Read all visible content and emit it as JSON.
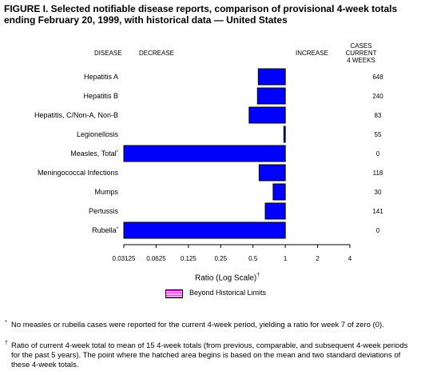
{
  "title": "FIGURE I. Selected notifiable disease reports, comparison of provisional 4-week totals ending February 20, 1999, with historical data — United States",
  "headers": {
    "disease": "DISEASE",
    "decrease": "DECREASE",
    "increase": "INCREASE",
    "cases_line1": "CASES CURRENT",
    "cases_line2": "4 WEEKS"
  },
  "legend": {
    "label": "Beyond Historical Limits",
    "hatch_color": "#ff00ff"
  },
  "footnotes": [
    {
      "mark": "*",
      "text": "No measles or rubella cases were reported for the current 4-week period, yielding a ratio for week 7 of zero (0)."
    },
    {
      "mark": "†",
      "text": "Ratio of current 4-week total to mean of 15 4-week totals (from previous, comparable, and subsequent 4-week periods for the past 5 years). The point where the hatched area begins is based on the mean and two standard deviations of these 4-week totals."
    }
  ],
  "chart_data": {
    "type": "bar",
    "orientation": "horizontal",
    "xlabel": "Ratio (Log Scale)",
    "xlabel_mark": "†",
    "x_scale": "log2",
    "xlim": [
      0.03125,
      4
    ],
    "xticks": [
      0.03125,
      0.0625,
      0.125,
      0.25,
      0.5,
      1,
      2,
      4
    ],
    "xtick_labels": [
      "0.03125",
      "0.0625",
      "0.125",
      "0.25",
      "0.5",
      "1",
      "2",
      "4"
    ],
    "baseline": 1,
    "bar_color": "#0000ff",
    "categories": [
      "Hepatitis A",
      "Hepatitis B",
      "Hepatitis, C/Non-A, Non-B",
      "Legionellosis",
      "Measles, Total",
      "Meningococcal Infections",
      "Mumps",
      "Pertussis",
      "Rubella"
    ],
    "category_marks": [
      "",
      "",
      "",
      "",
      "*",
      "",
      "",
      "",
      "*"
    ],
    "values": [
      0.56,
      0.55,
      0.46,
      0.97,
      0.03125,
      0.57,
      0.77,
      0.65,
      0.03125
    ],
    "cases_current_4_weeks": [
      "648",
      "240",
      "83",
      "55",
      "0",
      "118",
      "30",
      "141",
      "0"
    ]
  }
}
